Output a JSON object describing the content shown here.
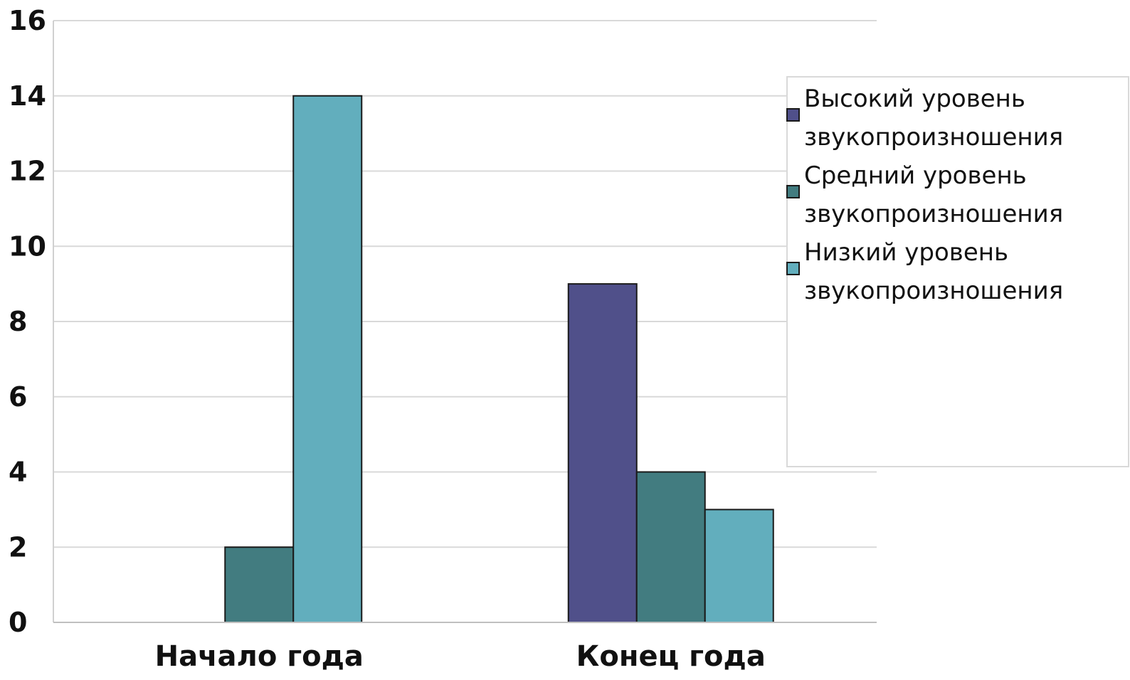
{
  "chart_data": {
    "type": "bar",
    "categories": [
      "Начало года",
      "Конец года"
    ],
    "series": [
      {
        "name": "Высокий уровень звукопроизношения",
        "values": [
          0,
          9
        ],
        "color": "#50508a"
      },
      {
        "name": "Средний уровень звукопроизношения",
        "values": [
          2,
          4
        ],
        "color": "#427c80"
      },
      {
        "name": "Низкий уровень звукопроизношения",
        "values": [
          14,
          3
        ],
        "color": "#62aebd"
      }
    ],
    "ylim": [
      0,
      16
    ],
    "yticks": [
      0,
      2,
      4,
      6,
      8,
      10,
      12,
      14,
      16
    ],
    "grid": true,
    "legend": {
      "position": "right",
      "entries": [
        {
          "line1": "Высокий уровень",
          "line2": "звукопроизношения"
        },
        {
          "line1": "Средний уровень",
          "line2": "звукопроизношения"
        },
        {
          "line1": "Низкий уровень",
          "line2": "звукопроизношения"
        }
      ]
    },
    "title": "",
    "xlabel": "",
    "ylabel": ""
  }
}
